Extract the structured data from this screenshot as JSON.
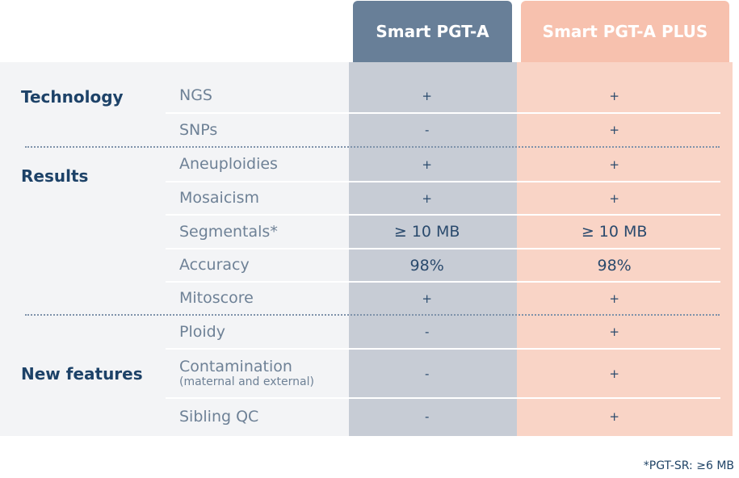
{
  "columns": {
    "smart_pgt_a": "Smart PGT-A",
    "smart_pgt_a_plus": "Smart PGT-A PLUS"
  },
  "sections": {
    "technology": "Technology",
    "results": "Results",
    "new_features": "New features"
  },
  "rows": [
    {
      "label": "NGS",
      "sub": "",
      "pgt_a": "+",
      "pgt_a_plus": "+"
    },
    {
      "label": "SNPs",
      "sub": "",
      "pgt_a": "-",
      "pgt_a_plus": "+"
    },
    {
      "label": "Aneuploidies",
      "sub": "",
      "pgt_a": "+",
      "pgt_a_plus": "+"
    },
    {
      "label": "Mosaicism",
      "sub": "",
      "pgt_a": "+",
      "pgt_a_plus": "+"
    },
    {
      "label": "Segmentals*",
      "sub": "",
      "pgt_a": "≥ 10 MB",
      "pgt_a_plus": "≥ 10 MB"
    },
    {
      "label": "Accuracy",
      "sub": "",
      "pgt_a": "98%",
      "pgt_a_plus": "98%"
    },
    {
      "label": "Mitoscore",
      "sub": "",
      "pgt_a": "+",
      "pgt_a_plus": "+"
    },
    {
      "label": "Ploidy",
      "sub": "",
      "pgt_a": "-",
      "pgt_a_plus": "+"
    },
    {
      "label": "Contamination",
      "sub": "(maternal and external)",
      "pgt_a": "-",
      "pgt_a_plus": "+"
    },
    {
      "label": "Sibling QC",
      "sub": "",
      "pgt_a": "-",
      "pgt_a_plus": "+"
    }
  ],
  "footnote": "*PGT-SR: ≥6 MB",
  "colors": {
    "header_pgt_a": "#687f98",
    "header_pgt_a_plus": "#f7c1ae",
    "column_pgt_a": "#c7ccd5",
    "column_pgt_a_plus": "#f9d4c6",
    "section_text": "#1d4268",
    "label_text": "#6e8196"
  }
}
